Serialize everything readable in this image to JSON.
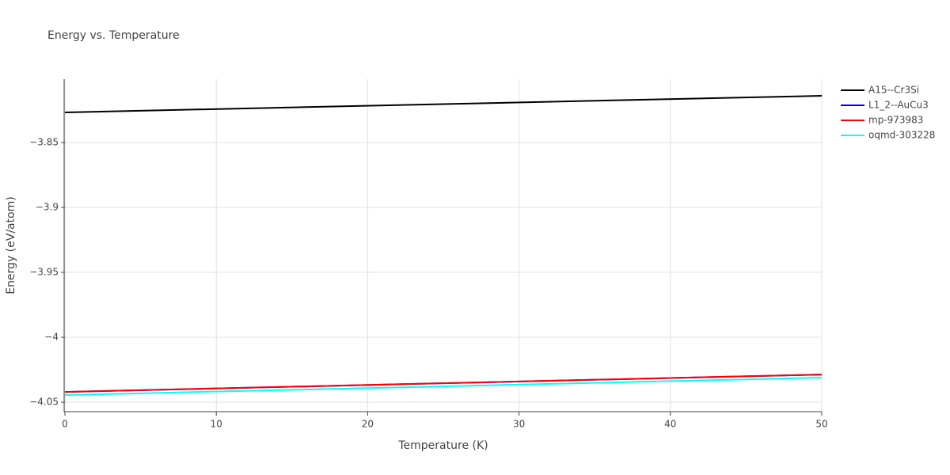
{
  "chart_data": {
    "type": "line",
    "title": "Energy vs. Temperature",
    "x_label": "Temperature (K)",
    "y_label": "Energy (eV/atom)",
    "x": [
      0,
      50
    ],
    "series": [
      {
        "name": "A15--Cr3Si",
        "color": "#000000",
        "values": [
          -3.8268,
          -3.814
        ]
      },
      {
        "name": "L1_2--AuCu3",
        "color": "#0000ff",
        "values": [
          -4.0421,
          -4.0287
        ]
      },
      {
        "name": "mp-973983",
        "color": "#ff0000",
        "values": [
          -4.0421,
          -4.0287
        ]
      },
      {
        "name": "oqmd-303228",
        "color": "#00ffff",
        "values": [
          -4.0445,
          -4.0311
        ]
      }
    ],
    "xlim": [
      0,
      50
    ],
    "xticks": [
      0,
      10,
      20,
      30,
      40,
      50
    ],
    "ylim": [
      -4.0573,
      -3.8012
    ],
    "yticks": [
      {
        "value": -4.05,
        "label": "−4.05"
      },
      {
        "value": -4,
        "label": "−4"
      },
      {
        "value": -3.95,
        "label": "−3.95"
      },
      {
        "value": -3.9,
        "label": "−3.9"
      },
      {
        "value": -3.85,
        "label": "−3.85"
      }
    ],
    "grid": true
  }
}
